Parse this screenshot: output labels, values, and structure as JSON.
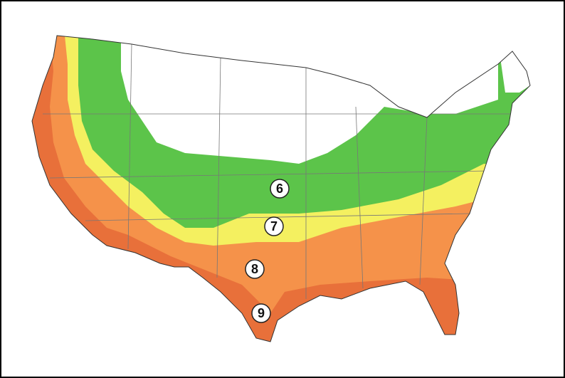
{
  "zones": [
    {
      "label": "6"
    },
    {
      "label": "7"
    },
    {
      "label": "8"
    },
    {
      "label": "9"
    }
  ]
}
